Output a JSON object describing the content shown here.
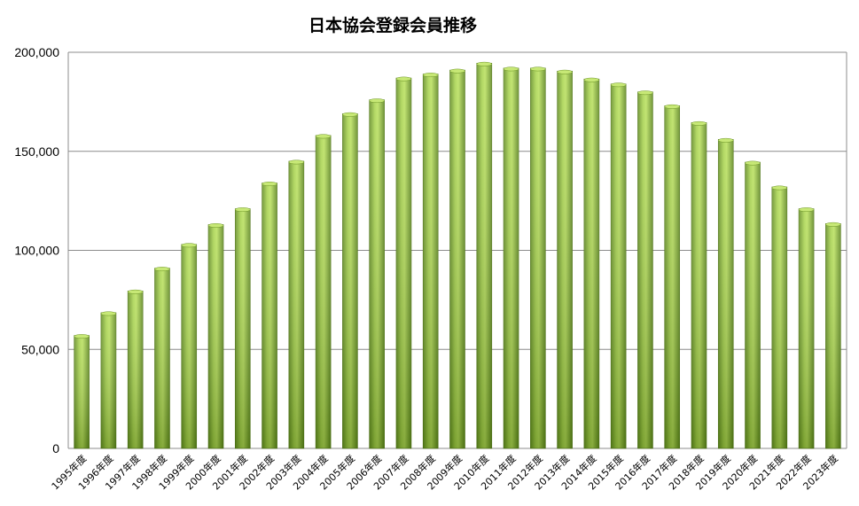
{
  "chart_data": {
    "type": "bar",
    "title": "日本協会登録会員推移",
    "xlabel": "",
    "ylabel": "",
    "ylim": [
      0,
      200000
    ],
    "yticks": [
      0,
      50000,
      100000,
      150000,
      200000
    ],
    "ytick_labels": [
      "0",
      "50,000",
      "100,000",
      "150,000",
      "200,000"
    ],
    "grid": true,
    "legend": "none",
    "bar_color": "#8fbf3a",
    "categories": [
      "1995年度",
      "1996年度",
      "1997年度",
      "1998年度",
      "1999年度",
      "2000年度",
      "2001年度",
      "2002年度",
      "2003年度",
      "2004年度",
      "2005年度",
      "2006年度",
      "2007年度",
      "2008年度",
      "2009年度",
      "2010年度",
      "2011年度",
      "2012年度",
      "2013年度",
      "2014年度",
      "2015年度",
      "2016年度",
      "2017年度",
      "2018年度",
      "2019年度",
      "2020年度",
      "2021年度",
      "2022年度",
      "2023年度"
    ],
    "values": [
      57000,
      68500,
      79500,
      91000,
      103000,
      113000,
      121000,
      134000,
      145000,
      158000,
      169000,
      176000,
      187000,
      189000,
      191000,
      194500,
      192000,
      192000,
      190500,
      186500,
      184000,
      180000,
      173000,
      164500,
      156000,
      144500,
      132000,
      121000,
      113500
    ]
  }
}
